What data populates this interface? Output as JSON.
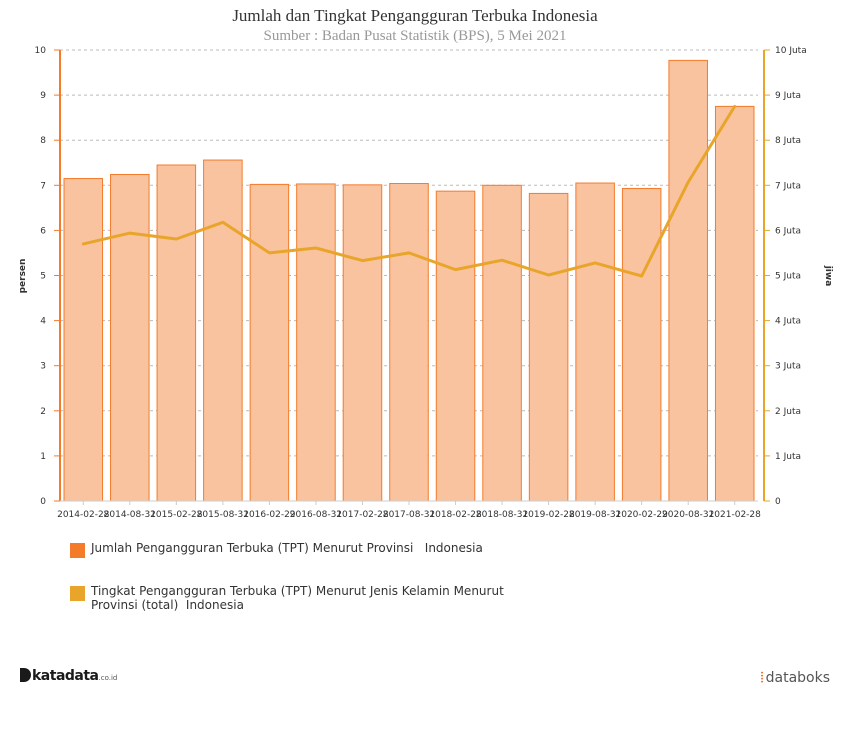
{
  "chart_data": {
    "type": "bar+line",
    "title": "Jumlah dan Tingkat Pengangguran Terbuka Indonesia",
    "subtitle": "Sumber : Badan Pusat Statistik (BPS), 5 Mei 2021",
    "categories": [
      "2014-02-28",
      "2014-08-31",
      "2015-02-28",
      "2015-08-31",
      "2016-02-29",
      "2016-08-31",
      "2017-02-28",
      "2017-08-31",
      "2018-02-28",
      "2018-08-31",
      "2019-02-28",
      "2019-08-31",
      "2020-02-29",
      "2020-08-31",
      "2021-02-28"
    ],
    "left_axis": {
      "label": "persen",
      "min": 0,
      "max": 10,
      "ticks": [
        "0",
        "1",
        "2",
        "3",
        "4",
        "5",
        "6",
        "7",
        "8",
        "9",
        "10"
      ]
    },
    "right_axis": {
      "label": "jiwa",
      "min": 0,
      "max": 10,
      "ticks": [
        "0",
        "1 Juta",
        "2 Juta",
        "3 Juta",
        "4 Juta",
        "5 Juta",
        "6 Juta",
        "7 Juta",
        "8 Juta",
        "9 Juta",
        "10 Juta"
      ]
    },
    "series": [
      {
        "name": "Jumlah Pengangguran Terbuka (TPT) Menurut Provinsi   Indonesia",
        "type": "bar",
        "axis": "left",
        "color": "#f47b2a",
        "fill": "#f9c3a0",
        "values": [
          7.15,
          7.24,
          7.45,
          7.56,
          7.02,
          7.03,
          7.01,
          7.04,
          6.87,
          7.0,
          6.82,
          7.05,
          6.93,
          9.77,
          8.75
        ]
      },
      {
        "name": "Tingkat Pengangguran Terbuka (TPT) Menurut Jenis Kelamin Menurut Provinsi (total)  Indonesia",
        "type": "line",
        "axis": "right",
        "color": "#e8a52a",
        "values": [
          5.7,
          5.94,
          5.81,
          6.18,
          5.5,
          5.61,
          5.33,
          5.5,
          5.13,
          5.34,
          5.01,
          5.28,
          4.99,
          7.07,
          8.75
        ]
      }
    ],
    "grid": true,
    "legend_position": "bottom-left"
  },
  "legend": {
    "bar_label": "Jumlah Pengangguran Terbuka (TPT) Menurut Provinsi   Indonesia",
    "line_label": "Tingkat Pengangguran Terbuka (TPT) Menurut Jenis Kelamin Menurut Provinsi (total)  Indonesia"
  },
  "branding": {
    "left_name": "katadata",
    "left_suffix": ".co.id",
    "right_name": "databoks",
    "bar_color": "#f47b2a",
    "line_color": "#e8a52a"
  }
}
